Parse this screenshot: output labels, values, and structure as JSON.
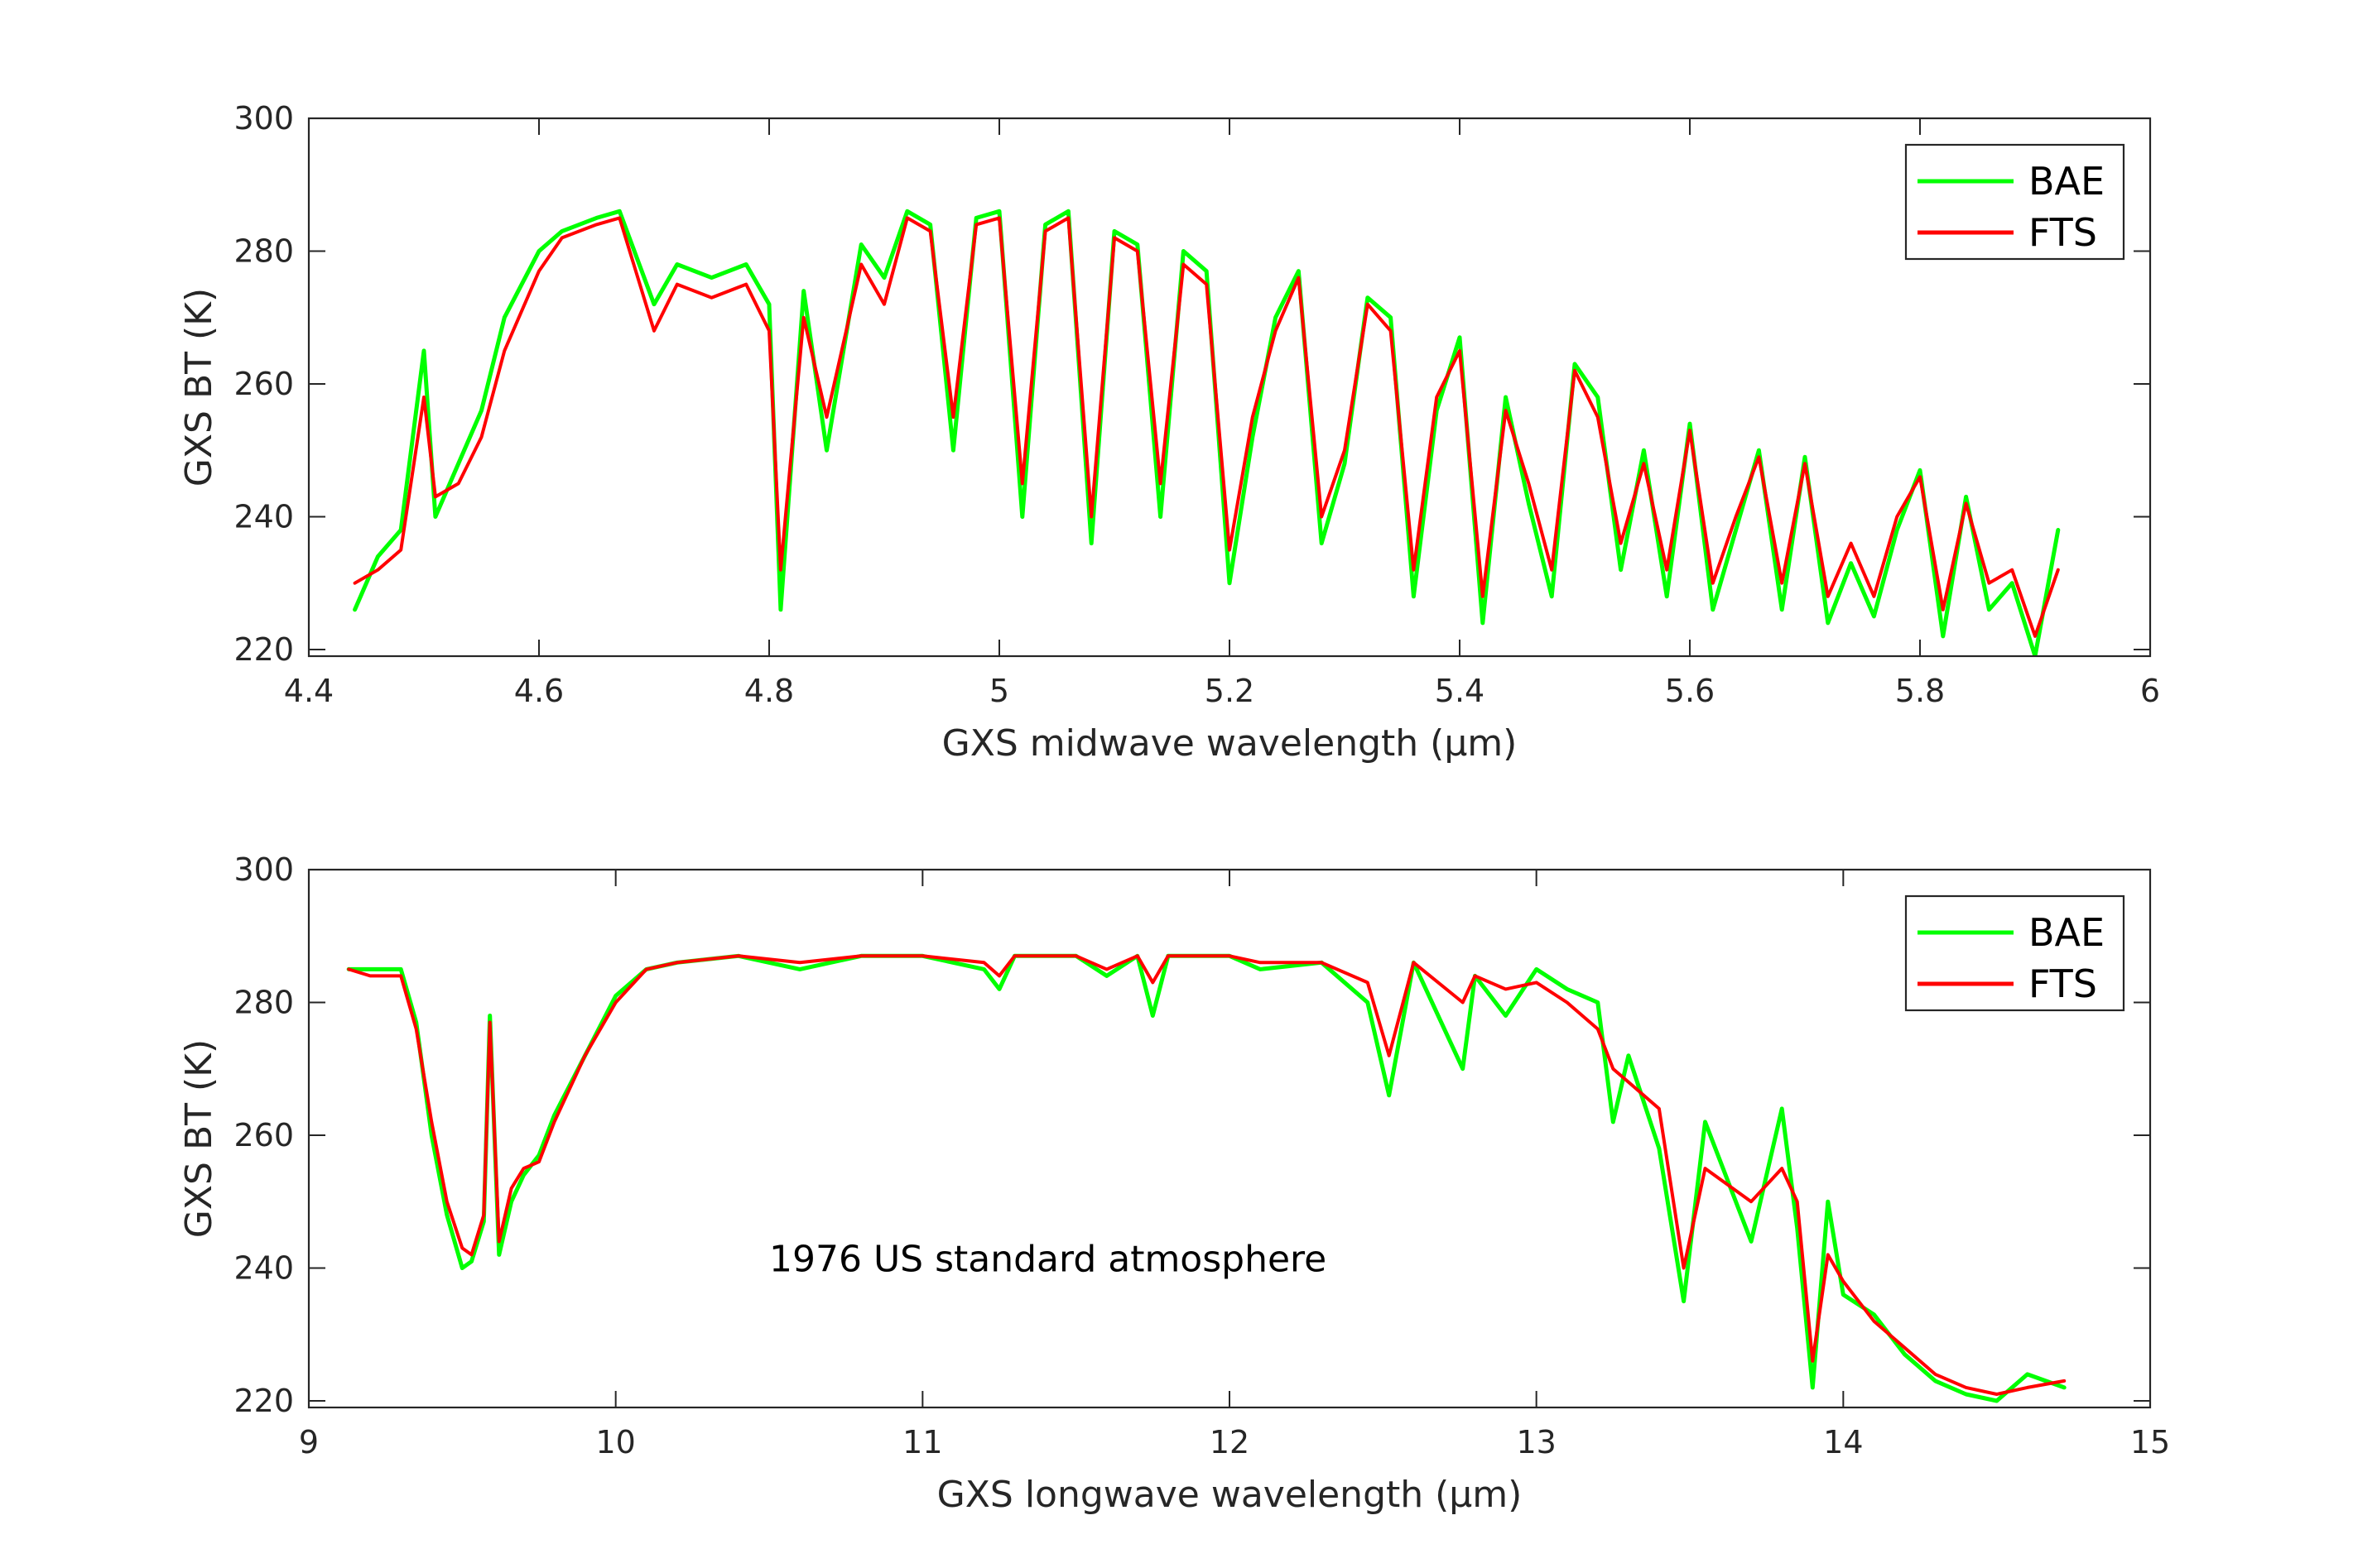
{
  "colors": {
    "BAE": "#00ff00",
    "FTS": "#ff0000",
    "axis": "#262626"
  },
  "chart_data": [
    {
      "type": "line",
      "xlabel": "GXS midwave wavelength (μm)",
      "ylabel": "GXS BT (K)",
      "xlim": [
        4.4,
        6
      ],
      "ylim": [
        219,
        300
      ],
      "xticks": [
        "4.4",
        "4.6",
        "4.8",
        "5",
        "5.2",
        "5.4",
        "5.6",
        "5.8",
        "6"
      ],
      "yticks": [
        "220",
        "240",
        "260",
        "280",
        "300"
      ],
      "legend": {
        "position": "top-right",
        "entries": [
          "BAE",
          "FTS"
        ]
      },
      "annotation": "",
      "series": [
        {
          "name": "FTS",
          "x": [
            4.44,
            4.46,
            4.48,
            4.5,
            4.51,
            4.53,
            4.55,
            4.57,
            4.6,
            4.62,
            4.65,
            4.67,
            4.7,
            4.72,
            4.75,
            4.78,
            4.8,
            4.81,
            4.83,
            4.85,
            4.88,
            4.9,
            4.92,
            4.94,
            4.96,
            4.98,
            5.0,
            5.02,
            5.04,
            5.06,
            5.08,
            5.1,
            5.12,
            5.14,
            5.16,
            5.18,
            5.2,
            5.22,
            5.24,
            5.26,
            5.28,
            5.3,
            5.32,
            5.34,
            5.36,
            5.38,
            5.4,
            5.42,
            5.44,
            5.46,
            5.48,
            5.5,
            5.52,
            5.54,
            5.56,
            5.58,
            5.6,
            5.62,
            5.64,
            5.66,
            5.68,
            5.7,
            5.72,
            5.74,
            5.76,
            5.78,
            5.8,
            5.82,
            5.84,
            5.86,
            5.88,
            5.9,
            5.92
          ],
          "y": [
            230,
            232,
            235,
            258,
            243,
            245,
            252,
            265,
            277,
            282,
            284,
            285,
            268,
            275,
            273,
            275,
            268,
            232,
            270,
            255,
            278,
            272,
            285,
            283,
            255,
            284,
            285,
            245,
            283,
            285,
            240,
            282,
            280,
            245,
            278,
            275,
            235,
            255,
            268,
            276,
            240,
            250,
            272,
            268,
            232,
            258,
            265,
            228,
            256,
            245,
            232,
            262,
            255,
            236,
            248,
            232,
            253,
            230,
            240,
            249,
            230,
            248,
            228,
            236,
            228,
            240,
            246,
            226,
            242,
            230,
            232,
            222,
            232
          ]
        },
        {
          "name": "BAE",
          "x": [
            4.44,
            4.46,
            4.48,
            4.5,
            4.51,
            4.53,
            4.55,
            4.57,
            4.6,
            4.62,
            4.65,
            4.67,
            4.7,
            4.72,
            4.75,
            4.78,
            4.8,
            4.81,
            4.83,
            4.85,
            4.88,
            4.9,
            4.92,
            4.94,
            4.96,
            4.98,
            5.0,
            5.02,
            5.04,
            5.06,
            5.08,
            5.1,
            5.12,
            5.14,
            5.16,
            5.18,
            5.2,
            5.22,
            5.24,
            5.26,
            5.28,
            5.3,
            5.32,
            5.34,
            5.36,
            5.38,
            5.4,
            5.42,
            5.44,
            5.46,
            5.48,
            5.5,
            5.52,
            5.54,
            5.56,
            5.58,
            5.6,
            5.62,
            5.64,
            5.66,
            5.68,
            5.7,
            5.72,
            5.74,
            5.76,
            5.78,
            5.8,
            5.82,
            5.84,
            5.86,
            5.88,
            5.9,
            5.92
          ],
          "y": [
            226,
            234,
            238,
            265,
            240,
            248,
            256,
            270,
            280,
            283,
            285,
            286,
            272,
            278,
            276,
            278,
            272,
            226,
            274,
            250,
            281,
            276,
            286,
            284,
            250,
            285,
            286,
            240,
            284,
            286,
            236,
            283,
            281,
            240,
            280,
            277,
            230,
            252,
            270,
            277,
            236,
            248,
            273,
            270,
            228,
            256,
            267,
            224,
            258,
            242,
            228,
            263,
            258,
            232,
            250,
            228,
            254,
            226,
            238,
            250,
            226,
            249,
            224,
            233,
            225,
            238,
            247,
            222,
            243,
            226,
            230,
            219,
            238
          ]
        }
      ]
    },
    {
      "type": "line",
      "xlabel": "GXS longwave wavelength (μm)",
      "ylabel": "GXS BT (K)",
      "xlim": [
        9,
        15
      ],
      "ylim": [
        219,
        300
      ],
      "xticks": [
        "9",
        "10",
        "11",
        "12",
        "13",
        "14",
        "15"
      ],
      "yticks": [
        "220",
        "240",
        "260",
        "280",
        "300"
      ],
      "legend": {
        "position": "top-right",
        "entries": [
          "BAE",
          "FTS"
        ]
      },
      "annotation": "1976 US standard atmosphere",
      "series": [
        {
          "name": "FTS",
          "x": [
            9.13,
            9.2,
            9.3,
            9.35,
            9.4,
            9.45,
            9.5,
            9.53,
            9.57,
            9.59,
            9.62,
            9.66,
            9.7,
            9.75,
            9.8,
            9.9,
            10.0,
            10.1,
            10.2,
            10.4,
            10.6,
            10.8,
            11.0,
            11.2,
            11.25,
            11.3,
            11.5,
            11.6,
            11.7,
            11.75,
            11.8,
            12.0,
            12.1,
            12.3,
            12.45,
            12.52,
            12.6,
            12.76,
            12.8,
            12.9,
            13.0,
            13.1,
            13.2,
            13.25,
            13.3,
            13.4,
            13.48,
            13.55,
            13.7,
            13.8,
            13.85,
            13.9,
            13.95,
            14.0,
            14.1,
            14.2,
            14.3,
            14.4,
            14.5,
            14.6,
            14.72
          ],
          "y": [
            285,
            284,
            284,
            276,
            262,
            250,
            243,
            242,
            248,
            277,
            244,
            252,
            255,
            256,
            262,
            272,
            280,
            285,
            286,
            287,
            286,
            287,
            287,
            286,
            284,
            287,
            287,
            285,
            287,
            283,
            287,
            287,
            286,
            286,
            283,
            272,
            286,
            280,
            284,
            282,
            283,
            280,
            276,
            270,
            268,
            264,
            240,
            255,
            250,
            255,
            250,
            226,
            242,
            238,
            232,
            228,
            224,
            222,
            221,
            222,
            223
          ]
        },
        {
          "name": "BAE",
          "x": [
            9.13,
            9.2,
            9.3,
            9.35,
            9.4,
            9.45,
            9.5,
            9.53,
            9.57,
            9.59,
            9.62,
            9.66,
            9.7,
            9.75,
            9.8,
            9.9,
            10.0,
            10.1,
            10.2,
            10.4,
            10.6,
            10.8,
            11.0,
            11.2,
            11.25,
            11.3,
            11.5,
            11.6,
            11.7,
            11.75,
            11.8,
            12.0,
            12.1,
            12.3,
            12.45,
            12.52,
            12.6,
            12.76,
            12.8,
            12.9,
            13.0,
            13.1,
            13.2,
            13.25,
            13.3,
            13.4,
            13.48,
            13.55,
            13.7,
            13.8,
            13.85,
            13.9,
            13.95,
            14.0,
            14.1,
            14.2,
            14.3,
            14.4,
            14.5,
            14.6,
            14.72
          ],
          "y": [
            285,
            285,
            285,
            277,
            260,
            248,
            240,
            241,
            247,
            278,
            242,
            250,
            254,
            257,
            263,
            272,
            281,
            285,
            286,
            287,
            285,
            287,
            287,
            285,
            282,
            287,
            287,
            284,
            287,
            278,
            287,
            287,
            285,
            286,
            280,
            266,
            286,
            270,
            284,
            278,
            285,
            282,
            280,
            262,
            272,
            258,
            235,
            262,
            244,
            264,
            246,
            222,
            250,
            236,
            233,
            227,
            223,
            221,
            220,
            224,
            222
          ]
        }
      ]
    }
  ]
}
